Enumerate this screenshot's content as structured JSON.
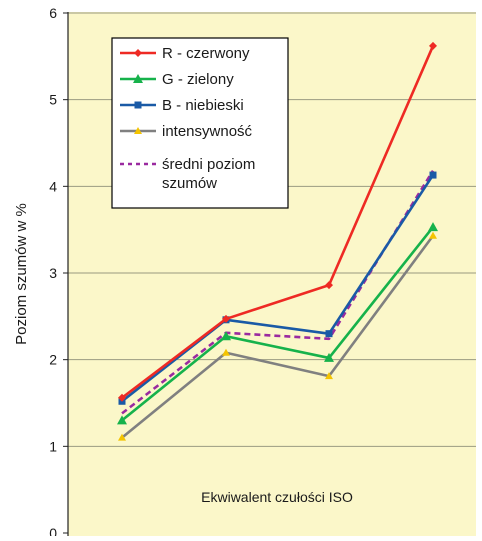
{
  "colors": {
    "plot_background": "#fbf7c9",
    "gridline": "#9a9a80",
    "axis": "#222222",
    "legend_background": "#ffffff"
  },
  "chart_data": {
    "type": "line",
    "title": "",
    "xlabel": "",
    "ylabel": "Poziom szumów  w %",
    "annotation": "Ekwiwalent czułości ISO",
    "ylim": [
      0,
      6
    ],
    "yticks": [
      0,
      1,
      2,
      3,
      4,
      5,
      6
    ],
    "x": [
      1,
      2,
      3,
      4
    ],
    "grid": "horizontal",
    "legend_position": "top-left",
    "series": [
      {
        "name": "R - czerwony",
        "color": "#ee2a24",
        "marker": "diamond",
        "dash": "solid",
        "values": [
          1.56,
          2.47,
          2.86,
          5.62
        ]
      },
      {
        "name": "G - zielony",
        "color": "#16b24b",
        "marker": "triangle",
        "dash": "solid",
        "values": [
          1.3,
          2.27,
          2.02,
          3.53
        ]
      },
      {
        "name": "B - niebieski",
        "color": "#1a5aa6",
        "marker": "square",
        "dash": "solid",
        "values": [
          1.52,
          2.46,
          2.3,
          4.13
        ]
      },
      {
        "name": "intensywność",
        "color": "#808080",
        "marker": "triangle-small",
        "marker_color": "#f4c400",
        "dash": "solid",
        "values": [
          1.1,
          2.08,
          1.81,
          3.43
        ]
      },
      {
        "name_lines": [
          "średni poziom",
          "szumów"
        ],
        "color": "#9a2aa0",
        "marker": "none",
        "dash": "dashed",
        "values": [
          1.38,
          2.31,
          2.24,
          4.18
        ]
      }
    ]
  }
}
